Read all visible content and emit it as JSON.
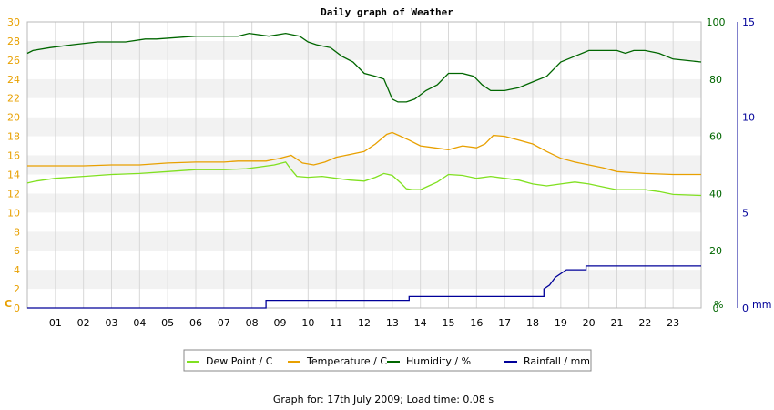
{
  "chart_data": {
    "type": "line",
    "title": "Daily graph of Weather",
    "x_tick_labels": [
      "01",
      "02",
      "03",
      "04",
      "05",
      "06",
      "07",
      "08",
      "09",
      "10",
      "11",
      "12",
      "13",
      "14",
      "15",
      "16",
      "17",
      "18",
      "19",
      "20",
      "21",
      "22",
      "23"
    ],
    "xlim": [
      0,
      24
    ],
    "axes": {
      "left": {
        "unit": "C",
        "ylim": [
          0,
          30
        ],
        "ticks": [
          0,
          2,
          4,
          6,
          8,
          10,
          12,
          14,
          16,
          18,
          20,
          22,
          24,
          26,
          28,
          30
        ],
        "color": "#e8a000"
      },
      "right_humidity": {
        "unit": "%",
        "ylim": [
          0,
          100
        ],
        "ticks": [
          0,
          20,
          40,
          60,
          80,
          100
        ],
        "color": "#006600"
      },
      "right_rainfall": {
        "unit": "mm",
        "ylim": [
          0,
          15
        ],
        "ticks": [
          0,
          5,
          10,
          15
        ],
        "color": "#000099"
      }
    },
    "series": [
      {
        "name": "Dew Point / C",
        "axis": "left",
        "color": "#80e020",
        "points": [
          [
            0,
            13.1
          ],
          [
            0.3,
            13.3
          ],
          [
            1,
            13.6
          ],
          [
            2,
            13.8
          ],
          [
            3,
            14.0
          ],
          [
            4,
            14.1
          ],
          [
            5,
            14.3
          ],
          [
            6,
            14.5
          ],
          [
            7,
            14.5
          ],
          [
            7.8,
            14.6
          ],
          [
            8.3,
            14.8
          ],
          [
            8.8,
            15.0
          ],
          [
            9.2,
            15.3
          ],
          [
            9.4,
            14.5
          ],
          [
            9.6,
            13.8
          ],
          [
            10,
            13.7
          ],
          [
            10.5,
            13.8
          ],
          [
            11,
            13.6
          ],
          [
            11.5,
            13.4
          ],
          [
            12,
            13.3
          ],
          [
            12.4,
            13.7
          ],
          [
            12.7,
            14.1
          ],
          [
            13.0,
            13.9
          ],
          [
            13.3,
            13.1
          ],
          [
            13.5,
            12.5
          ],
          [
            13.7,
            12.4
          ],
          [
            14,
            12.4
          ],
          [
            14.3,
            12.8
          ],
          [
            14.6,
            13.2
          ],
          [
            15,
            14.0
          ],
          [
            15.5,
            13.9
          ],
          [
            16,
            13.6
          ],
          [
            16.5,
            13.8
          ],
          [
            17,
            13.6
          ],
          [
            17.5,
            13.4
          ],
          [
            18,
            13.0
          ],
          [
            18.5,
            12.8
          ],
          [
            19,
            13.0
          ],
          [
            19.5,
            13.2
          ],
          [
            20,
            13.0
          ],
          [
            20.5,
            12.7
          ],
          [
            21,
            12.4
          ],
          [
            21.5,
            12.4
          ],
          [
            22,
            12.4
          ],
          [
            22.5,
            12.2
          ],
          [
            23,
            11.9
          ],
          [
            24,
            11.8
          ]
        ]
      },
      {
        "name": "Temperature / C",
        "axis": "left",
        "color": "#e8a000",
        "points": [
          [
            0,
            14.9
          ],
          [
            1,
            14.9
          ],
          [
            2,
            14.9
          ],
          [
            3,
            15.0
          ],
          [
            4,
            15.0
          ],
          [
            5,
            15.2
          ],
          [
            6,
            15.3
          ],
          [
            7,
            15.3
          ],
          [
            7.5,
            15.4
          ],
          [
            8.5,
            15.4
          ],
          [
            9.0,
            15.7
          ],
          [
            9.4,
            16.0
          ],
          [
            9.8,
            15.2
          ],
          [
            10.2,
            15.0
          ],
          [
            10.6,
            15.3
          ],
          [
            11,
            15.8
          ],
          [
            11.5,
            16.1
          ],
          [
            12,
            16.4
          ],
          [
            12.4,
            17.2
          ],
          [
            12.8,
            18.2
          ],
          [
            13.0,
            18.4
          ],
          [
            13.3,
            18.0
          ],
          [
            13.6,
            17.6
          ],
          [
            14,
            17.0
          ],
          [
            14.5,
            16.8
          ],
          [
            15,
            16.6
          ],
          [
            15.5,
            17.0
          ],
          [
            16,
            16.8
          ],
          [
            16.3,
            17.2
          ],
          [
            16.6,
            18.1
          ],
          [
            17,
            18.0
          ],
          [
            17.5,
            17.6
          ],
          [
            18,
            17.2
          ],
          [
            18.5,
            16.4
          ],
          [
            19,
            15.7
          ],
          [
            19.5,
            15.3
          ],
          [
            20,
            15.0
          ],
          [
            20.5,
            14.7
          ],
          [
            21,
            14.3
          ],
          [
            21.5,
            14.2
          ],
          [
            22,
            14.1
          ],
          [
            23,
            14.0
          ],
          [
            24,
            14.0
          ]
        ]
      },
      {
        "name": "Humidity / %",
        "axis": "humidity",
        "color": "#006600",
        "points": [
          [
            0,
            89
          ],
          [
            0.2,
            90
          ],
          [
            0.8,
            91
          ],
          [
            1.6,
            92
          ],
          [
            2.5,
            93
          ],
          [
            3.5,
            93
          ],
          [
            4.2,
            94
          ],
          [
            4.6,
            94
          ],
          [
            6,
            95
          ],
          [
            7.5,
            95
          ],
          [
            7.9,
            96
          ],
          [
            8.6,
            95
          ],
          [
            9.2,
            96
          ],
          [
            9.7,
            95
          ],
          [
            10.0,
            93
          ],
          [
            10.3,
            92
          ],
          [
            10.8,
            91
          ],
          [
            11.2,
            88
          ],
          [
            11.6,
            86
          ],
          [
            12.0,
            82
          ],
          [
            12.4,
            81
          ],
          [
            12.7,
            80
          ],
          [
            13.0,
            73
          ],
          [
            13.2,
            72
          ],
          [
            13.5,
            72
          ],
          [
            13.8,
            73
          ],
          [
            14.2,
            76
          ],
          [
            14.6,
            78
          ],
          [
            15,
            82
          ],
          [
            15.5,
            82
          ],
          [
            15.9,
            81
          ],
          [
            16.2,
            78
          ],
          [
            16.5,
            76
          ],
          [
            17.0,
            76
          ],
          [
            17.5,
            77
          ],
          [
            18.0,
            79
          ],
          [
            18.5,
            81
          ],
          [
            19.0,
            86
          ],
          [
            19.5,
            88
          ],
          [
            20,
            90
          ],
          [
            20.5,
            90
          ],
          [
            21,
            90
          ],
          [
            21.3,
            89
          ],
          [
            21.6,
            90
          ],
          [
            22,
            90
          ],
          [
            22.5,
            89
          ],
          [
            23,
            87
          ],
          [
            24,
            86
          ]
        ]
      },
      {
        "name": "Rainfall / mm",
        "axis": "rainfall",
        "color": "#000099",
        "points": [
          [
            0,
            0
          ],
          [
            8.5,
            0
          ],
          [
            8.5,
            0.4
          ],
          [
            13.6,
            0.4
          ],
          [
            13.6,
            0.6
          ],
          [
            18.4,
            0.6
          ],
          [
            18.4,
            1.0
          ],
          [
            18.6,
            1.2
          ],
          [
            18.8,
            1.6
          ],
          [
            19.2,
            2.0
          ],
          [
            19.9,
            2.0
          ],
          [
            19.9,
            2.2
          ],
          [
            24,
            2.2
          ]
        ]
      }
    ],
    "legend_position": "bottom",
    "grid": true
  },
  "footer": "Graph for: 17th July 2009; Load time: 0.08 s"
}
